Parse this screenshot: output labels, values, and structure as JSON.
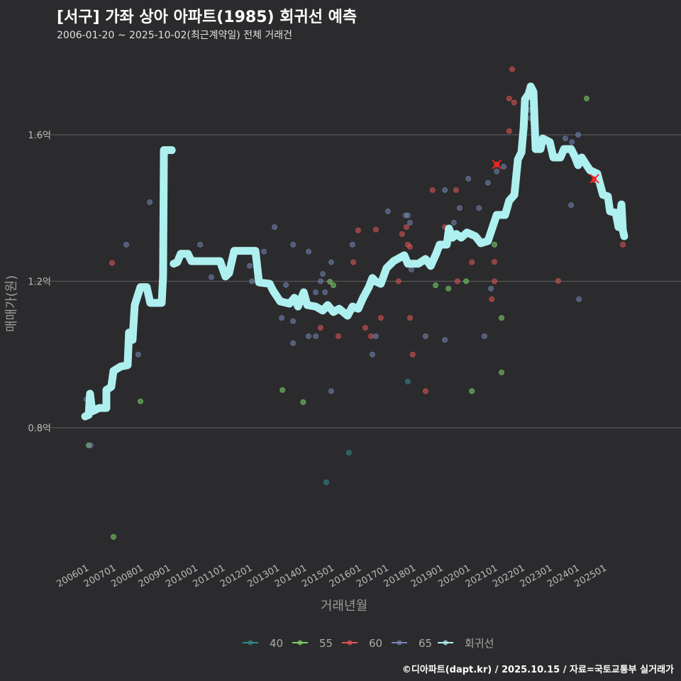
{
  "title": "[서구] 가좌 상아 아파트(1985) 회귀선 예측",
  "subtitle": "2006-01-20 ~ 2025-10-02(최근계약일) 전체 거래건",
  "footer": "©디아파트(dapt.kr) / 2025.10.15 / 자료=국토교통부 실거래가",
  "colors": {
    "background": "#2b2b2d",
    "grid": "#555555",
    "40": "#2e8b8b",
    "55": "#7ed36a",
    "60": "#e05555",
    "65": "#7585b5",
    "회귀선": "#aef0f0",
    "marker": "#ff2020"
  },
  "chart_data": {
    "type": "scatter",
    "title": "[서구] 가좌 상아 아파트(1985) 회귀선 예측",
    "xlabel": "거래년월",
    "ylabel": "매매가(원)",
    "xlim": [
      2005.85,
      2026.3
    ],
    "ylim": [
      0.437,
      1.8
    ],
    "yticks": [
      {
        "v": 0.8,
        "label": "0.8억"
      },
      {
        "v": 1.2,
        "label": "1.2억"
      },
      {
        "v": 1.6,
        "label": "1.6억"
      }
    ],
    "xticks": [
      "200601",
      "200701",
      "200801",
      "200901",
      "201001",
      "201101",
      "201201",
      "201301",
      "201401",
      "201501",
      "201601",
      "201701",
      "201801",
      "201901",
      "202001",
      "202101",
      "202201",
      "202301",
      "202401",
      "202501"
    ],
    "legend": {
      "position": "bottom",
      "items": [
        "40",
        "55",
        "60",
        "65",
        "회귀선"
      ]
    },
    "series": [
      {
        "name": "40",
        "points": [
          [
            2014.85,
            0.651
          ],
          [
            2015.68,
            0.732
          ],
          [
            2017.84,
            0.926
          ]
        ]
      },
      {
        "name": "55",
        "points": [
          [
            2006.13,
            0.752
          ],
          [
            2007.04,
            0.502
          ],
          [
            2008.03,
            0.872
          ],
          [
            2013.24,
            0.903
          ],
          [
            2014.0,
            0.87
          ],
          [
            2014.98,
            1.199
          ],
          [
            2015.11,
            1.189
          ],
          [
            2018.86,
            1.189
          ],
          [
            2019.33,
            1.18
          ],
          [
            2019.98,
            1.2
          ],
          [
            2020.19,
            0.9
          ],
          [
            2021.02,
            1.3
          ],
          [
            2021.28,
            1.1
          ],
          [
            2021.28,
            0.951
          ],
          [
            2024.4,
            1.699
          ]
        ]
      },
      {
        "name": "60",
        "points": [
          [
            2006.99,
            1.25
          ],
          [
            2014.64,
            1.073
          ],
          [
            2015.29,
            1.05
          ],
          [
            2015.84,
            1.252
          ],
          [
            2016.02,
            1.339
          ],
          [
            2016.28,
            1.073
          ],
          [
            2016.49,
            1.05
          ],
          [
            2016.67,
            1.341
          ],
          [
            2016.85,
            1.1
          ],
          [
            2017.5,
            1.2
          ],
          [
            2017.63,
            1.329
          ],
          [
            2017.79,
            1.348
          ],
          [
            2017.84,
            1.3
          ],
          [
            2017.92,
            1.294
          ],
          [
            2017.92,
            1.1
          ],
          [
            2018.02,
            1.0
          ],
          [
            2018.49,
            0.9
          ],
          [
            2018.75,
            1.449
          ],
          [
            2019.2,
            1.348
          ],
          [
            2019.61,
            1.449
          ],
          [
            2019.66,
            1.2
          ],
          [
            2020.19,
            1.252
          ],
          [
            2020.92,
            1.151
          ],
          [
            2021.02,
            1.253
          ],
          [
            2021.02,
            1.2
          ],
          [
            2021.1,
            1.519
          ],
          [
            2021.56,
            1.699
          ],
          [
            2021.56,
            1.61
          ],
          [
            2021.67,
            1.779
          ],
          [
            2021.74,
            1.688
          ],
          [
            2023.36,
            1.201
          ],
          [
            2024.69,
            1.476
          ],
          [
            2025.73,
            1.3
          ]
        ]
      },
      {
        "name": "65",
        "points": [
          [
            2006.05,
            0.878
          ],
          [
            2006.2,
            0.752
          ],
          [
            2007.51,
            1.3
          ],
          [
            2007.95,
            1.0
          ],
          [
            2008.37,
            1.416
          ],
          [
            2010.22,
            1.3
          ],
          [
            2010.63,
            1.211
          ],
          [
            2012.04,
            1.242
          ],
          [
            2012.12,
            1.2
          ],
          [
            2012.56,
            1.281
          ],
          [
            2012.95,
            1.348
          ],
          [
            2013.21,
            1.1
          ],
          [
            2013.37,
            1.19
          ],
          [
            2013.63,
            1.3
          ],
          [
            2013.63,
            1.031
          ],
          [
            2013.63,
            1.091
          ],
          [
            2014.2,
            1.281
          ],
          [
            2014.2,
            1.05
          ],
          [
            2014.46,
            1.05
          ],
          [
            2014.46,
            1.17
          ],
          [
            2014.64,
            1.2
          ],
          [
            2014.72,
            1.22
          ],
          [
            2014.8,
            1.17
          ],
          [
            2015.03,
            1.252
          ],
          [
            2015.03,
            0.9
          ],
          [
            2015.81,
            1.3
          ],
          [
            2016.54,
            1.0
          ],
          [
            2016.67,
            1.05
          ],
          [
            2017.11,
            1.391
          ],
          [
            2017.76,
            1.38
          ],
          [
            2017.84,
            1.38
          ],
          [
            2017.92,
            1.36
          ],
          [
            2017.97,
            1.232
          ],
          [
            2018.49,
            1.05
          ],
          [
            2019.2,
            1.04
          ],
          [
            2019.2,
            1.449
          ],
          [
            2019.53,
            1.36
          ],
          [
            2019.74,
            1.4
          ],
          [
            2020.06,
            1.48
          ],
          [
            2020.45,
            1.4
          ],
          [
            2020.65,
            1.05
          ],
          [
            2020.78,
            1.469
          ],
          [
            2020.89,
            1.18
          ],
          [
            2021.1,
            1.5
          ],
          [
            2021.36,
            1.513
          ],
          [
            2022.32,
            1.668
          ],
          [
            2022.35,
            1.645
          ],
          [
            2023.62,
            1.59
          ],
          [
            2023.83,
            1.408
          ],
          [
            2023.86,
            1.58
          ],
          [
            2024.09,
            1.6
          ],
          [
            2024.12,
            1.151
          ]
        ]
      }
    ],
    "markers": [
      [
        2021.1,
        1.519
      ],
      [
        2024.69,
        1.48
      ]
    ],
    "regression": [
      [
        [
          2006.0,
          0.831
        ],
        [
          2006.13,
          0.835
        ],
        [
          2006.18,
          0.893
        ],
        [
          2006.26,
          0.845
        ],
        [
          2006.52,
          0.854
        ],
        [
          2006.78,
          0.854
        ],
        [
          2006.78,
          0.903
        ],
        [
          2006.96,
          0.912
        ],
        [
          2007.04,
          0.955
        ],
        [
          2007.3,
          0.967
        ],
        [
          2007.56,
          0.971
        ],
        [
          2007.61,
          1.06
        ],
        [
          2007.74,
          1.04
        ],
        [
          2007.82,
          1.135
        ],
        [
          2008.03,
          1.184
        ],
        [
          2008.26,
          1.184
        ],
        [
          2008.39,
          1.141
        ],
        [
          2008.81,
          1.141
        ],
        [
          2008.86,
          1.213
        ],
        [
          2008.89,
          1.558
        ],
        [
          2009.18,
          1.558
        ]
      ],
      [
        [
          2009.25,
          1.248
        ],
        [
          2009.38,
          1.252
        ],
        [
          2009.51,
          1.275
        ],
        [
          2009.77,
          1.275
        ],
        [
          2009.9,
          1.255
        ],
        [
          2010.95,
          1.255
        ],
        [
          2011.15,
          1.213
        ],
        [
          2011.28,
          1.222
        ],
        [
          2011.47,
          1.283
        ],
        [
          2012.25,
          1.283
        ],
        [
          2012.38,
          1.197
        ],
        [
          2012.77,
          1.193
        ],
        [
          2012.9,
          1.174
        ],
        [
          2013.16,
          1.145
        ],
        [
          2013.5,
          1.139
        ],
        [
          2013.68,
          1.155
        ],
        [
          2013.81,
          1.131
        ],
        [
          2014.02,
          1.17
        ],
        [
          2014.15,
          1.135
        ],
        [
          2014.46,
          1.131
        ],
        [
          2014.72,
          1.12
        ],
        [
          2014.9,
          1.135
        ],
        [
          2015.11,
          1.116
        ],
        [
          2015.32,
          1.125
        ],
        [
          2015.63,
          1.106
        ],
        [
          2015.81,
          1.131
        ],
        [
          2016.02,
          1.125
        ],
        [
          2016.2,
          1.155
        ],
        [
          2016.41,
          1.184
        ],
        [
          2016.54,
          1.209
        ],
        [
          2016.67,
          1.199
        ],
        [
          2016.85,
          1.193
        ],
        [
          2017.06,
          1.236
        ],
        [
          2017.32,
          1.255
        ],
        [
          2017.71,
          1.271
        ],
        [
          2017.84,
          1.248
        ],
        [
          2018.23,
          1.248
        ],
        [
          2018.49,
          1.261
        ],
        [
          2018.68,
          1.242
        ],
        [
          2018.88,
          1.275
        ],
        [
          2019.01,
          1.3
        ],
        [
          2019.27,
          1.3
        ],
        [
          2019.35,
          1.344
        ],
        [
          2019.48,
          1.319
        ],
        [
          2019.62,
          1.329
        ],
        [
          2019.8,
          1.319
        ],
        [
          2020.01,
          1.333
        ],
        [
          2020.32,
          1.323
        ],
        [
          2020.52,
          1.304
        ],
        [
          2020.78,
          1.31
        ],
        [
          2020.97,
          1.352
        ],
        [
          2021.1,
          1.381
        ],
        [
          2021.41,
          1.381
        ],
        [
          2021.56,
          1.42
        ],
        [
          2021.75,
          1.436
        ],
        [
          2021.88,
          1.533
        ],
        [
          2022.01,
          1.552
        ],
        [
          2022.09,
          1.62
        ],
        [
          2022.14,
          1.697
        ],
        [
          2022.27,
          1.711
        ],
        [
          2022.35,
          1.732
        ],
        [
          2022.45,
          1.717
        ],
        [
          2022.53,
          1.561
        ],
        [
          2022.71,
          1.561
        ],
        [
          2022.79,
          1.59
        ],
        [
          2023.05,
          1.58
        ],
        [
          2023.18,
          1.538
        ],
        [
          2023.44,
          1.538
        ],
        [
          2023.57,
          1.561
        ],
        [
          2023.83,
          1.561
        ],
        [
          2023.96,
          1.542
        ],
        [
          2024.09,
          1.517
        ],
        [
          2024.22,
          1.538
        ],
        [
          2024.4,
          1.517
        ],
        [
          2024.53,
          1.503
        ],
        [
          2024.79,
          1.494
        ],
        [
          2025.0,
          1.436
        ],
        [
          2025.18,
          1.432
        ],
        [
          2025.26,
          1.391
        ],
        [
          2025.47,
          1.387
        ],
        [
          2025.57,
          1.348
        ],
        [
          2025.68,
          1.41
        ],
        [
          2025.73,
          1.339
        ],
        [
          2025.78,
          1.323
        ]
      ]
    ]
  }
}
